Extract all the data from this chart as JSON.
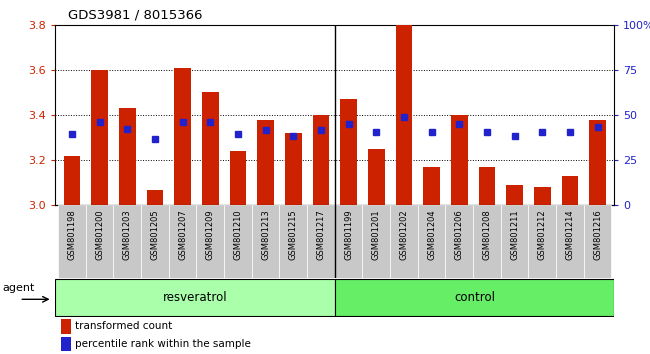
{
  "title": "GDS3981 / 8015366",
  "samples": [
    "GSM801198",
    "GSM801200",
    "GSM801203",
    "GSM801205",
    "GSM801207",
    "GSM801209",
    "GSM801210",
    "GSM801213",
    "GSM801215",
    "GSM801217",
    "GSM801199",
    "GSM801201",
    "GSM801202",
    "GSM801204",
    "GSM801206",
    "GSM801208",
    "GSM801211",
    "GSM801212",
    "GSM801214",
    "GSM801216"
  ],
  "red_values": [
    3.22,
    3.6,
    3.43,
    3.07,
    3.61,
    3.5,
    3.24,
    3.38,
    3.32,
    3.4,
    3.47,
    3.25,
    3.8,
    3.17,
    3.4,
    3.17,
    3.09,
    3.08,
    3.13,
    3.38
  ],
  "blue_values": [
    3.315,
    3.37,
    3.34,
    3.295,
    3.37,
    3.37,
    3.315,
    3.335,
    3.305,
    3.335,
    3.36,
    3.325,
    3.39,
    3.325,
    3.36,
    3.325,
    3.305,
    3.325,
    3.325,
    3.345
  ],
  "resveratrol_count": 10,
  "control_count": 10,
  "group_labels": [
    "resveratrol",
    "control"
  ],
  "y_min": 3.0,
  "y_max": 3.8,
  "y_ticks": [
    3.0,
    3.2,
    3.4,
    3.6,
    3.8
  ],
  "y2_ticks": [
    0,
    25,
    50,
    75,
    100
  ],
  "y2_tick_labels": [
    "0",
    "25",
    "50",
    "75",
    "100%"
  ],
  "background_color": "#ffffff",
  "bar_color": "#cc2200",
  "marker_color": "#2222cc",
  "resveratrol_bg": "#aaffaa",
  "control_bg": "#66ee66",
  "agent_label": "agent",
  "legend_items": [
    "transformed count",
    "percentile rank within the sample"
  ],
  "tick_label_color_left": "#cc2200",
  "tick_label_color_right": "#2222cc",
  "gray_col_bg": "#c8c8c8"
}
